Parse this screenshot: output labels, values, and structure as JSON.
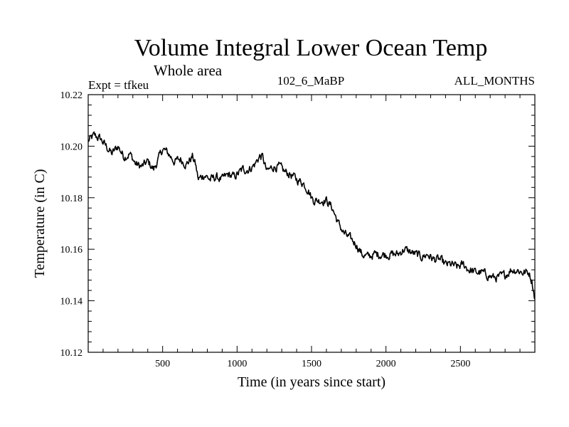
{
  "chart_data": {
    "type": "line",
    "title": "Volume Integral Lower Ocean Temp",
    "subtitle": "Whole area",
    "header_left": "Expt = tfkeu",
    "header_center": "102_6_MaBP",
    "header_right": "ALL_MONTHS",
    "xlabel": "Time (in years since start)",
    "ylabel": "Temperature (in C)",
    "xlim": [
      0,
      3000
    ],
    "ylim": [
      10.12,
      10.22
    ],
    "xticks": [
      500,
      1000,
      1500,
      2000,
      2500
    ],
    "yticks": [
      "10.12",
      "10.14",
      "10.16",
      "10.18",
      "10.20",
      "10.22"
    ],
    "grid": false,
    "series": [
      {
        "color": "#000000",
        "x": [
          0,
          40,
          80,
          120,
          160,
          200,
          240,
          280,
          320,
          360,
          400,
          440,
          480,
          500,
          540,
          580,
          620,
          660,
          700,
          720,
          740,
          780,
          820,
          860,
          900,
          940,
          980,
          1000,
          1040,
          1080,
          1120,
          1150,
          1170,
          1200,
          1240,
          1280,
          1320,
          1360,
          1400,
          1440,
          1480,
          1500,
          1520,
          1560,
          1600,
          1640,
          1680,
          1720,
          1760,
          1800,
          1840,
          1880,
          1920,
          1960,
          2000,
          2040,
          2080,
          2120,
          2160,
          2200,
          2240,
          2280,
          2320,
          2360,
          2400,
          2440,
          2480,
          2520,
          2560,
          2600,
          2640,
          2680,
          2720,
          2760,
          2800,
          2840,
          2880,
          2920,
          2960,
          2980,
          3000
        ],
        "y": [
          10.202,
          10.204,
          10.203,
          10.2,
          10.197,
          10.2,
          10.196,
          10.197,
          10.193,
          10.192,
          10.194,
          10.191,
          10.196,
          10.199,
          10.197,
          10.194,
          10.195,
          10.193,
          10.196,
          10.193,
          10.187,
          10.189,
          10.187,
          10.188,
          10.187,
          10.189,
          10.188,
          10.189,
          10.191,
          10.191,
          10.193,
          10.196,
          10.196,
          10.19,
          10.192,
          10.192,
          10.19,
          10.189,
          10.187,
          10.186,
          10.183,
          10.18,
          10.179,
          10.179,
          10.179,
          10.176,
          10.17,
          10.166,
          10.164,
          10.162,
          10.158,
          10.157,
          10.158,
          10.158,
          10.158,
          10.158,
          10.158,
          10.16,
          10.159,
          10.158,
          10.157,
          10.158,
          10.156,
          10.156,
          10.154,
          10.154,
          10.153,
          10.154,
          10.152,
          10.151,
          10.151,
          10.15,
          10.149,
          10.149,
          10.15,
          10.152,
          10.152,
          10.151,
          10.151,
          10.148,
          10.141
        ]
      }
    ]
  }
}
